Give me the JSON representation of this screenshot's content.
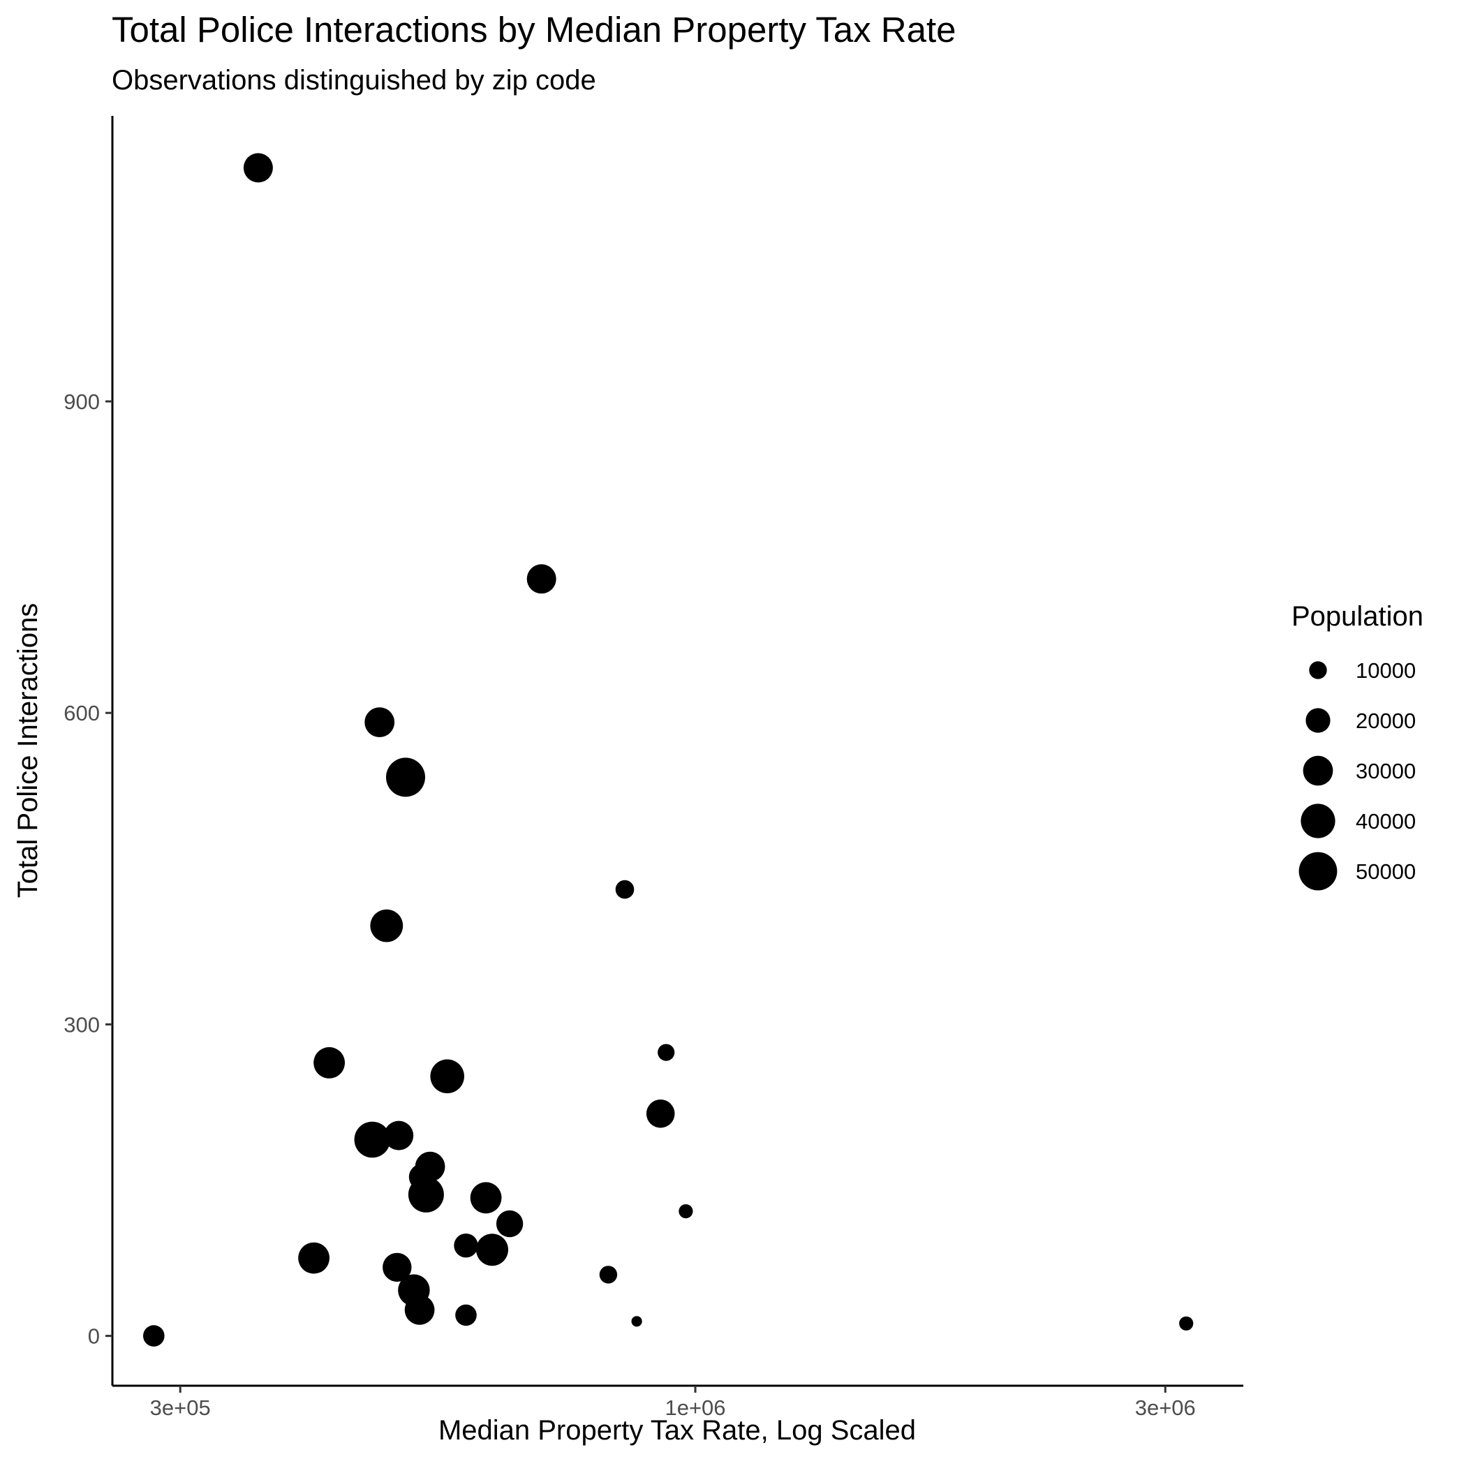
{
  "chart_data": {
    "type": "scatter",
    "title": "Total Police Interactions by Median Property Tax Rate",
    "subtitle": "Observations distinguished by zip code",
    "xlabel": "Median Property Tax Rate, Log Scaled",
    "ylabel": "Total Police Interactions",
    "x_scale": "log10",
    "xlim": [
      256000,
      3600000
    ],
    "ylim": [
      -48,
      1175
    ],
    "x_ticks": [
      {
        "value": 300000,
        "label": "3e+05"
      },
      {
        "value": 1000000,
        "label": "1e+06"
      },
      {
        "value": 3000000,
        "label": "3e+06"
      }
    ],
    "y_ticks": [
      {
        "value": 0,
        "label": "0"
      },
      {
        "value": 300,
        "label": "300"
      },
      {
        "value": 600,
        "label": "600"
      },
      {
        "value": 900,
        "label": "900"
      }
    ],
    "grid": false,
    "legend": {
      "title": "Population",
      "position": "right",
      "entries": [
        {
          "value": 10000,
          "label": "10000"
        },
        {
          "value": 20000,
          "label": "20000"
        },
        {
          "value": 30000,
          "label": "30000"
        },
        {
          "value": 40000,
          "label": "40000"
        },
        {
          "value": 50000,
          "label": "50000"
        }
      ]
    },
    "size_range": {
      "population": [
        1500,
        56000
      ]
    },
    "point_color": "#000000",
    "points": [
      {
        "x": 282000,
        "y": 0,
        "population": 15000
      },
      {
        "x": 360000,
        "y": 1125,
        "population": 29000
      },
      {
        "x": 410000,
        "y": 75,
        "population": 33000
      },
      {
        "x": 425000,
        "y": 263,
        "population": 33000
      },
      {
        "x": 470000,
        "y": 189,
        "population": 44000
      },
      {
        "x": 478000,
        "y": 591,
        "population": 30000
      },
      {
        "x": 486000,
        "y": 395,
        "population": 36000
      },
      {
        "x": 498000,
        "y": 66,
        "population": 28000
      },
      {
        "x": 500000,
        "y": 193,
        "population": 29000
      },
      {
        "x": 508000,
        "y": 538,
        "population": 52000
      },
      {
        "x": 518000,
        "y": 44,
        "population": 34000
      },
      {
        "x": 525000,
        "y": 25,
        "population": 30000
      },
      {
        "x": 528000,
        "y": 153,
        "population": 23000
      },
      {
        "x": 533000,
        "y": 136,
        "population": 43000
      },
      {
        "x": 538000,
        "y": 163,
        "population": 30000
      },
      {
        "x": 560000,
        "y": 250,
        "population": 39000
      },
      {
        "x": 585000,
        "y": 87,
        "population": 19000
      },
      {
        "x": 585000,
        "y": 20,
        "population": 15000
      },
      {
        "x": 613000,
        "y": 133,
        "population": 33000
      },
      {
        "x": 622000,
        "y": 83,
        "population": 35000
      },
      {
        "x": 648000,
        "y": 108,
        "population": 24000
      },
      {
        "x": 698000,
        "y": 729,
        "population": 29000
      },
      {
        "x": 816000,
        "y": 59,
        "population": 10000
      },
      {
        "x": 848000,
        "y": 430,
        "population": 11000
      },
      {
        "x": 872000,
        "y": 14,
        "population": 3000
      },
      {
        "x": 922000,
        "y": 214,
        "population": 27000
      },
      {
        "x": 934000,
        "y": 273,
        "population": 9000
      },
      {
        "x": 978000,
        "y": 120,
        "population": 6000
      },
      {
        "x": 3150000,
        "y": 12,
        "population": 6000
      }
    ]
  }
}
